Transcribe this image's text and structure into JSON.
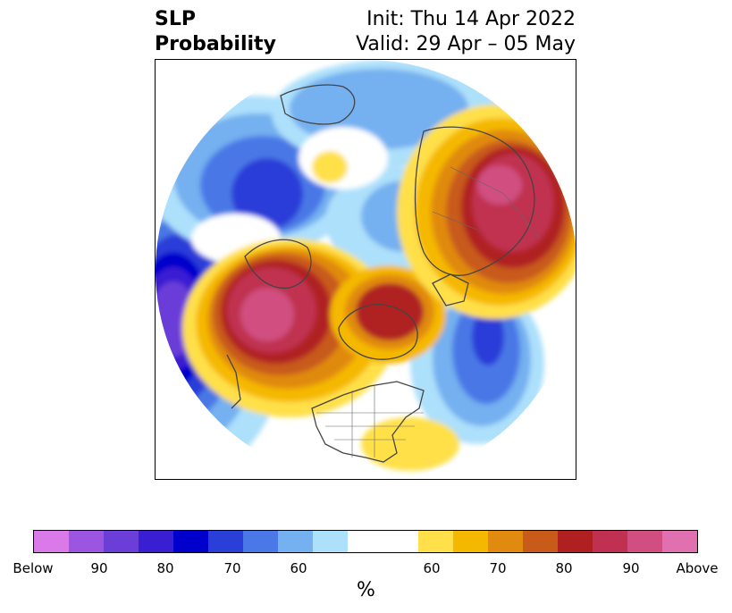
{
  "title": {
    "left_line1": "SLP",
    "left_line2": "Probability",
    "right_line1": "Init: Thu 14 Apr 2022",
    "right_line2": "Valid: 29 Apr – 05 May"
  },
  "colorbar": {
    "colors": [
      "#d97ae8",
      "#9b55e0",
      "#6b3ed8",
      "#3a1fd2",
      "#0000cc",
      "#2a3ed8",
      "#4a78e6",
      "#75b0f0",
      "#ade0fb",
      "#ffffff",
      "#ffe04a",
      "#f5b800",
      "#e08a10",
      "#c85a1a",
      "#b02020",
      "#c03050",
      "#d04f80",
      "#e070b0"
    ],
    "tick_labels": [
      "Below",
      "90",
      "80",
      "70",
      "60",
      "60",
      "70",
      "80",
      "90",
      "Above"
    ],
    "unit": "%"
  },
  "map": {
    "projection": "north-polar-stereographic",
    "variable": "sea level pressure probability"
  }
}
